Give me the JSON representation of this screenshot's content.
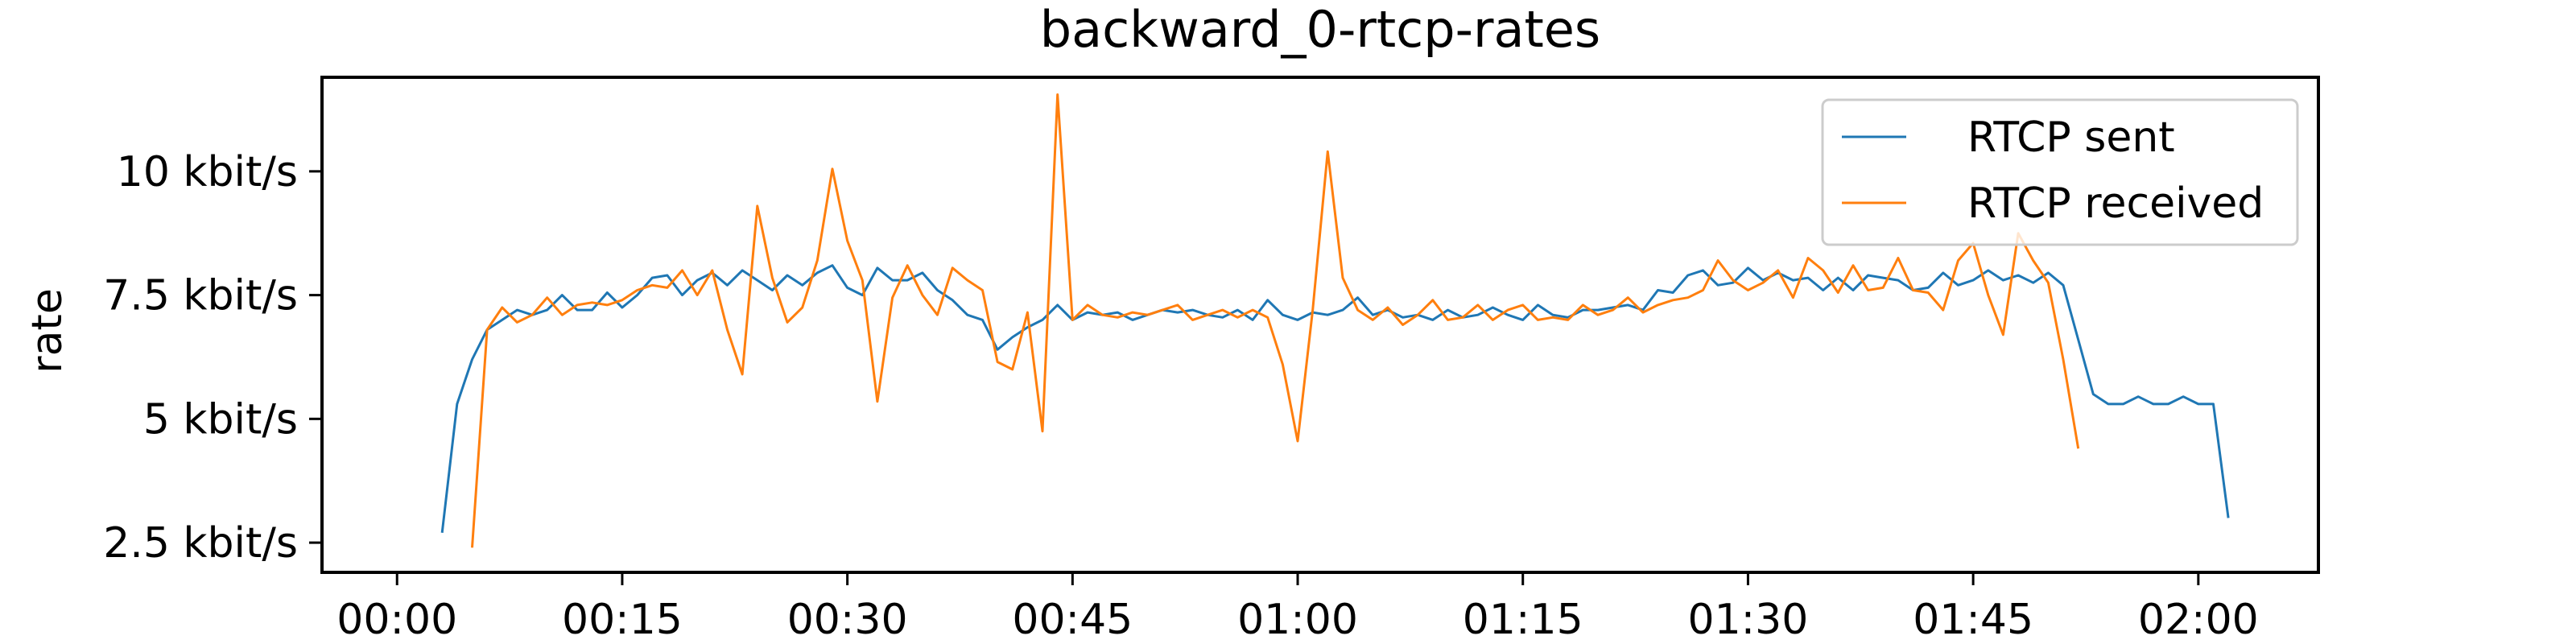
{
  "chart_data": {
    "type": "line",
    "title": "backward_0-rtcp-rates",
    "xlabel": "",
    "ylabel": "rate",
    "xlim": [
      -5,
      128
    ],
    "ylim": [
      1.9,
      11.9
    ],
    "x_ticks": [
      {
        "value": 0,
        "label": "00:00"
      },
      {
        "value": 15,
        "label": "00:15"
      },
      {
        "value": 30,
        "label": "00:30"
      },
      {
        "value": 45,
        "label": "00:45"
      },
      {
        "value": 60,
        "label": "01:00"
      },
      {
        "value": 75,
        "label": "01:15"
      },
      {
        "value": 90,
        "label": "01:30"
      },
      {
        "value": 105,
        "label": "01:45"
      },
      {
        "value": 120,
        "label": "02:00"
      }
    ],
    "y_ticks": [
      {
        "value": 2.5,
        "label": "2.5 kbit/s"
      },
      {
        "value": 5,
        "label": "5 kbit/s"
      },
      {
        "value": 7.5,
        "label": "7.5 kbit/s"
      },
      {
        "value": 10,
        "label": "10 kbit/s"
      }
    ],
    "grid": false,
    "legend_position": "top-right",
    "series": [
      {
        "name": "RTCP sent",
        "color": "#1f77b4",
        "x": [
          3,
          4,
          5,
          6,
          7,
          8,
          9,
          10,
          11,
          12,
          13,
          14,
          15,
          16,
          17,
          18,
          19,
          20,
          21,
          22,
          23,
          24,
          25,
          26,
          27,
          28,
          29,
          30,
          31,
          32,
          33,
          34,
          35,
          36,
          37,
          38,
          39,
          40,
          41,
          42,
          43,
          44,
          45,
          46,
          47,
          48,
          49,
          50,
          51,
          52,
          53,
          54,
          55,
          56,
          57,
          58,
          59,
          60,
          61,
          62,
          63,
          64,
          65,
          66,
          67,
          68,
          69,
          70,
          71,
          72,
          73,
          74,
          75,
          76,
          77,
          78,
          79,
          80,
          81,
          82,
          83,
          84,
          85,
          86,
          87,
          88,
          89,
          90,
          91,
          92,
          93,
          94,
          95,
          96,
          97,
          98,
          99,
          100,
          101,
          102,
          103,
          104,
          105,
          106,
          107,
          108,
          109,
          110,
          111,
          112,
          113,
          114,
          115,
          116,
          117,
          118,
          119,
          120,
          121,
          122
        ],
        "y": [
          2.7,
          5.3,
          6.2,
          6.8,
          7.0,
          7.2,
          7.1,
          7.2,
          7.5,
          7.2,
          7.2,
          7.55,
          7.25,
          7.5,
          7.85,
          7.9,
          7.5,
          7.8,
          7.95,
          7.7,
          8.0,
          7.8,
          7.6,
          7.9,
          7.7,
          7.95,
          8.1,
          7.65,
          7.5,
          8.05,
          7.8,
          7.8,
          7.95,
          7.6,
          7.4,
          7.1,
          7.0,
          6.4,
          6.65,
          6.85,
          7.0,
          7.3,
          7.0,
          7.15,
          7.1,
          7.15,
          7.0,
          7.1,
          7.2,
          7.15,
          7.2,
          7.1,
          7.05,
          7.2,
          7.0,
          7.4,
          7.1,
          7.0,
          7.15,
          7.1,
          7.2,
          7.45,
          7.1,
          7.2,
          7.05,
          7.1,
          7.0,
          7.2,
          7.05,
          7.1,
          7.25,
          7.1,
          7.0,
          7.3,
          7.1,
          7.05,
          7.2,
          7.2,
          7.25,
          7.3,
          7.2,
          7.6,
          7.55,
          7.9,
          8.0,
          7.7,
          7.75,
          8.05,
          7.8,
          7.95,
          7.8,
          7.85,
          7.6,
          7.85,
          7.6,
          7.9,
          7.85,
          7.8,
          7.6,
          7.65,
          7.95,
          7.7,
          7.8,
          8.0,
          7.8,
          7.9,
          7.75,
          7.95,
          7.7,
          6.6,
          5.5,
          5.3,
          5.3,
          5.45,
          5.3,
          5.3,
          5.45,
          5.3,
          5.3,
          3.0
        ]
      },
      {
        "name": "RTCP received",
        "color": "#ff7f0e",
        "x": [
          5,
          6,
          7,
          8,
          9,
          10,
          11,
          12,
          13,
          14,
          15,
          16,
          17,
          18,
          19,
          20,
          21,
          22,
          23,
          24,
          25,
          26,
          27,
          28,
          29,
          30,
          31,
          32,
          33,
          34,
          35,
          36,
          37,
          38,
          39,
          40,
          41,
          42,
          43,
          44,
          45,
          46,
          47,
          48,
          49,
          50,
          51,
          52,
          53,
          54,
          55,
          56,
          57,
          58,
          59,
          60,
          61,
          62,
          63,
          64,
          65,
          66,
          67,
          68,
          69,
          70,
          71,
          72,
          73,
          74,
          75,
          76,
          77,
          78,
          79,
          80,
          81,
          82,
          83,
          84,
          85,
          86,
          87,
          88,
          89,
          90,
          91,
          92,
          93,
          94,
          95,
          96,
          97,
          98,
          99,
          100,
          101,
          102,
          103,
          104,
          105,
          106,
          107,
          108,
          109,
          110,
          111,
          112
        ],
        "y": [
          2.4,
          6.8,
          7.25,
          6.95,
          7.1,
          7.45,
          7.1,
          7.3,
          7.35,
          7.3,
          7.4,
          7.6,
          7.7,
          7.65,
          8.0,
          7.5,
          8.0,
          6.8,
          5.9,
          9.3,
          7.85,
          6.95,
          7.25,
          8.2,
          10.05,
          8.6,
          7.8,
          5.35,
          7.45,
          8.1,
          7.5,
          7.1,
          8.05,
          7.8,
          7.6,
          6.15,
          6.0,
          7.15,
          4.75,
          11.55,
          7.0,
          7.3,
          7.1,
          7.05,
          7.15,
          7.1,
          7.2,
          7.3,
          7.0,
          7.1,
          7.2,
          7.05,
          7.2,
          7.05,
          6.1,
          4.55,
          7.2,
          10.4,
          7.85,
          7.2,
          7.0,
          7.25,
          6.9,
          7.1,
          7.4,
          7.0,
          7.05,
          7.3,
          7.0,
          7.2,
          7.3,
          7.0,
          7.05,
          7.0,
          7.3,
          7.1,
          7.2,
          7.45,
          7.15,
          7.3,
          7.4,
          7.45,
          7.6,
          8.2,
          7.8,
          7.6,
          7.75,
          8.0,
          7.45,
          8.25,
          8.0,
          7.55,
          8.1,
          7.6,
          7.65,
          8.25,
          7.6,
          7.55,
          7.2,
          8.2,
          8.55,
          7.5,
          6.7,
          8.75,
          8.2,
          7.75,
          6.2,
          4.4
        ]
      }
    ]
  }
}
